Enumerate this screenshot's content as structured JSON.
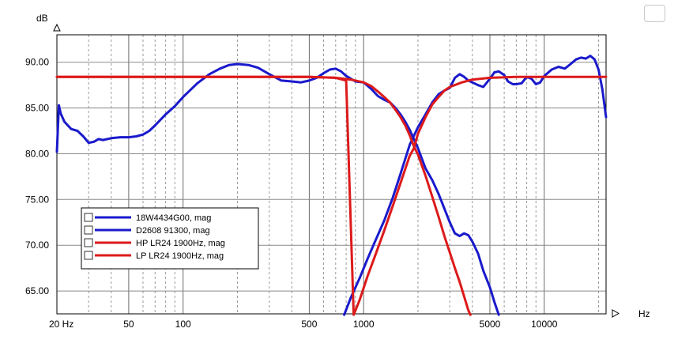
{
  "chart_data": {
    "type": "line",
    "title": "",
    "xlabel": "Hz",
    "ylabel": "dB",
    "xscale": "log",
    "xlim": [
      20,
      22000
    ],
    "ylim": [
      62.5,
      93.0
    ],
    "grid": true,
    "x_tick_labels": [
      {
        "value": 20,
        "label": "20 Hz"
      },
      {
        "value": 50,
        "label": "50"
      },
      {
        "value": 100,
        "label": "100"
      },
      {
        "value": 500,
        "label": "500"
      },
      {
        "value": 1000,
        "label": "1000"
      },
      {
        "value": 5000,
        "label": "5000"
      },
      {
        "value": 10000,
        "label": "10000"
      }
    ],
    "y_tick_labels": [
      {
        "value": 65,
        "label": "65.00"
      },
      {
        "value": 70,
        "label": "70.00"
      },
      {
        "value": 75,
        "label": "75.00"
      },
      {
        "value": 80,
        "label": "80.00"
      },
      {
        "value": 85,
        "label": "85.00"
      },
      {
        "value": 90,
        "label": "90.00"
      }
    ],
    "series": [
      {
        "name": "18W4434G00, mag",
        "color": "#1a1acc",
        "points": [
          [
            20,
            80.2
          ],
          [
            20.5,
            85.3
          ],
          [
            21,
            84.4
          ],
          [
            22,
            83.5
          ],
          [
            24,
            82.7
          ],
          [
            26,
            82.5
          ],
          [
            28,
            81.9
          ],
          [
            30,
            81.2
          ],
          [
            32,
            81.3
          ],
          [
            34,
            81.6
          ],
          [
            36,
            81.5
          ],
          [
            40,
            81.7
          ],
          [
            45,
            81.8
          ],
          [
            50,
            81.8
          ],
          [
            55,
            81.9
          ],
          [
            60,
            82.1
          ],
          [
            65,
            82.5
          ],
          [
            70,
            83.1
          ],
          [
            80,
            84.3
          ],
          [
            90,
            85.2
          ],
          [
            100,
            86.2
          ],
          [
            120,
            87.7
          ],
          [
            140,
            88.7
          ],
          [
            160,
            89.3
          ],
          [
            180,
            89.7
          ],
          [
            200,
            89.8
          ],
          [
            230,
            89.7
          ],
          [
            260,
            89.4
          ],
          [
            300,
            88.7
          ],
          [
            350,
            88.0
          ],
          [
            400,
            87.9
          ],
          [
            450,
            87.8
          ],
          [
            500,
            88.0
          ],
          [
            550,
            88.3
          ],
          [
            600,
            88.8
          ],
          [
            650,
            89.2
          ],
          [
            700,
            89.3
          ],
          [
            750,
            89.0
          ],
          [
            800,
            88.5
          ],
          [
            900,
            87.9
          ],
          [
            1000,
            87.8
          ],
          [
            1100,
            87.1
          ],
          [
            1200,
            86.3
          ],
          [
            1300,
            85.9
          ],
          [
            1400,
            85.6
          ],
          [
            1500,
            85.0
          ],
          [
            1600,
            84.3
          ],
          [
            1700,
            83.5
          ],
          [
            1800,
            82.6
          ],
          [
            2000,
            80.6
          ],
          [
            2200,
            78.4
          ],
          [
            2400,
            77.1
          ],
          [
            2600,
            75.6
          ],
          [
            2800,
            74.0
          ],
          [
            3000,
            72.5
          ],
          [
            3200,
            71.3
          ],
          [
            3400,
            71.0
          ],
          [
            3600,
            71.3
          ],
          [
            3800,
            71.1
          ],
          [
            4000,
            70.4
          ],
          [
            4300,
            69.1
          ],
          [
            4600,
            67.2
          ],
          [
            5000,
            65.4
          ],
          [
            5300,
            63.8
          ],
          [
            5600,
            62.4
          ]
        ]
      },
      {
        "name": "D2608 91300, mag",
        "color": "#1a1acc",
        "points": [
          [
            780,
            62.4
          ],
          [
            850,
            64.3
          ],
          [
            950,
            66.4
          ],
          [
            1050,
            68.5
          ],
          [
            1150,
            70.3
          ],
          [
            1300,
            72.7
          ],
          [
            1450,
            75.2
          ],
          [
            1600,
            77.8
          ],
          [
            1800,
            81.0
          ],
          [
            2000,
            82.9
          ],
          [
            2200,
            84.3
          ],
          [
            2400,
            85.6
          ],
          [
            2600,
            86.5
          ],
          [
            2800,
            86.9
          ],
          [
            3000,
            87.2
          ],
          [
            3200,
            88.3
          ],
          [
            3400,
            88.7
          ],
          [
            3600,
            88.4
          ],
          [
            3800,
            88.0
          ],
          [
            4000,
            87.8
          ],
          [
            4300,
            87.5
          ],
          [
            4600,
            87.3
          ],
          [
            5000,
            88.2
          ],
          [
            5300,
            88.9
          ],
          [
            5600,
            89.0
          ],
          [
            6000,
            88.6
          ],
          [
            6300,
            87.9
          ],
          [
            6700,
            87.6
          ],
          [
            7000,
            87.6
          ],
          [
            7500,
            87.7
          ],
          [
            8000,
            88.4
          ],
          [
            8500,
            88.2
          ],
          [
            9000,
            87.6
          ],
          [
            9500,
            87.8
          ],
          [
            10000,
            88.5
          ],
          [
            11000,
            89.2
          ],
          [
            12000,
            89.5
          ],
          [
            13000,
            89.3
          ],
          [
            14000,
            89.8
          ],
          [
            15000,
            90.3
          ],
          [
            16000,
            90.5
          ],
          [
            17000,
            90.4
          ],
          [
            18000,
            90.7
          ],
          [
            19000,
            90.3
          ],
          [
            20000,
            89.2
          ],
          [
            21000,
            87.0
          ],
          [
            22000,
            84.0
          ]
        ]
      },
      {
        "name": "HP LR24 1900Hz, mag",
        "color": "#dd1a1a",
        "points": [
          [
            20,
            88.4
          ],
          [
            100,
            88.4
          ],
          [
            300,
            88.4
          ],
          [
            500,
            88.4
          ],
          [
            700,
            88.3
          ],
          [
            800,
            88.0
          ],
          [
            880,
            62.4
          ],
          [
            950,
            64.0
          ],
          [
            1050,
            66.6
          ],
          [
            1150,
            68.7
          ],
          [
            1300,
            71.6
          ],
          [
            1450,
            74.3
          ],
          [
            1600,
            76.8
          ],
          [
            1800,
            79.8
          ],
          [
            1900,
            80.6
          ],
          [
            2000,
            82.2
          ],
          [
            2200,
            84.0
          ],
          [
            2400,
            85.4
          ],
          [
            2600,
            86.2
          ],
          [
            2800,
            86.9
          ],
          [
            3000,
            87.3
          ],
          [
            3500,
            87.8
          ],
          [
            4000,
            88.1
          ],
          [
            5000,
            88.3
          ],
          [
            7000,
            88.4
          ],
          [
            10000,
            88.4
          ],
          [
            22000,
            88.4
          ]
        ]
      },
      {
        "name": "LP LR24 1900Hz, mag",
        "color": "#dd1a1a",
        "points": [
          [
            20,
            88.4
          ],
          [
            100,
            88.4
          ],
          [
            300,
            88.4
          ],
          [
            500,
            88.4
          ],
          [
            700,
            88.3
          ],
          [
            850,
            88.1
          ],
          [
            1000,
            87.8
          ],
          [
            1100,
            87.4
          ],
          [
            1200,
            86.8
          ],
          [
            1300,
            86.2
          ],
          [
            1400,
            85.6
          ],
          [
            1500,
            84.8
          ],
          [
            1600,
            84.0
          ],
          [
            1700,
            83.1
          ],
          [
            1800,
            82.0
          ],
          [
            1900,
            80.8
          ],
          [
            2000,
            79.9
          ],
          [
            2200,
            77.6
          ],
          [
            2400,
            75.3
          ],
          [
            2600,
            73.1
          ],
          [
            2800,
            71.0
          ],
          [
            3000,
            69.2
          ],
          [
            3200,
            67.5
          ],
          [
            3400,
            66.0
          ],
          [
            3600,
            64.4
          ],
          [
            3800,
            62.9
          ],
          [
            3900,
            62.4
          ]
        ]
      }
    ],
    "legend": {
      "placement": "bottom-left",
      "entries": [
        "18W4434G00, mag",
        "D2608 91300, mag",
        "HP LR24 1900Hz, mag",
        "LP LR24 1900Hz, mag"
      ]
    }
  }
}
